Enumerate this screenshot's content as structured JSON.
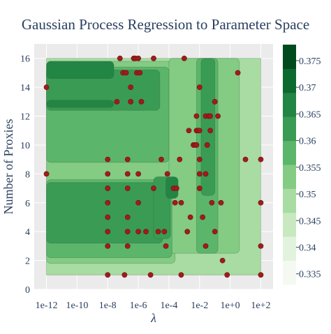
{
  "chart_data": {
    "type": "heatmap",
    "subtype": "contour",
    "title": "Gaussian Process Regression to Parameter Space",
    "xlabel": "λ",
    "ylabel": "Number of Proxies",
    "x_scale": "log",
    "x_ticks": [
      "1e-12",
      "1e-10",
      "1e-8",
      "1e-6",
      "1e-4",
      "1e-2",
      "1e+0",
      "1e+2"
    ],
    "x_tick_exponents": [
      -12,
      -10,
      -8,
      -6,
      -4,
      -2,
      0,
      2
    ],
    "y_ticks": [
      "0",
      "2",
      "4",
      "6",
      "8",
      "10",
      "12",
      "14",
      "16"
    ],
    "y_tick_values": [
      0,
      2,
      4,
      6,
      8,
      10,
      12,
      14,
      16
    ],
    "xlim_log10": [
      -12.8,
      2.8
    ],
    "ylim": [
      0,
      17
    ],
    "colorscale": "Greens",
    "colorbar": {
      "ticks": [
        "0.335",
        "0.34",
        "0.345",
        "0.35",
        "0.355",
        "0.36",
        "0.365",
        "0.37",
        "0.375"
      ],
      "tick_values": [
        0.335,
        0.34,
        0.345,
        0.35,
        0.355,
        0.36,
        0.365,
        0.37,
        0.375
      ],
      "range": [
        0.333,
        0.378
      ],
      "colors": [
        "#f4faf2",
        "#e1f3dc",
        "#c8e9c0",
        "#a8dca2",
        "#84cb84",
        "#5bb56a",
        "#3a9b54",
        "#238543",
        "#0c6a2f",
        "#014a1d"
      ]
    },
    "contour_bands": [
      {
        "level": 3,
        "x": [
          -12,
          2
        ],
        "y": [
          1,
          16
        ]
      },
      {
        "level": 4,
        "x": [
          -12,
          -3.6
        ],
        "y": [
          1.8,
          15.8
        ]
      },
      {
        "level": 4,
        "x": [
          -4,
          0.6
        ],
        "y": [
          2.5,
          16
        ]
      },
      {
        "level": 5,
        "x": [
          -12,
          -4
        ],
        "y": [
          8.8,
          15.4
        ]
      },
      {
        "level": 5,
        "x": [
          -12,
          -3.8
        ],
        "y": [
          2.2,
          7.6
        ]
      },
      {
        "level": 5,
        "x": [
          -2.2,
          -0.8
        ],
        "y": [
          2.5,
          16
        ]
      },
      {
        "level": 6,
        "x": [
          -12,
          -4.6
        ],
        "y": [
          12.4,
          15.2
        ]
      },
      {
        "level": 6,
        "x": [
          -12,
          -4.4
        ],
        "y": [
          3.2,
          7.4
        ]
      },
      {
        "level": 6,
        "x": [
          -5,
          -3.9
        ],
        "y": [
          3.5,
          7.8
        ]
      },
      {
        "level": 6,
        "x": [
          -1.9,
          -1.0
        ],
        "y": [
          6.5,
          16
        ]
      },
      {
        "level": 7,
        "x": [
          -12,
          -7.6
        ],
        "y": [
          12.6,
          13.1
        ]
      },
      {
        "level": 7,
        "x": [
          -12,
          -7.6
        ],
        "y": [
          14.6,
          15.8
        ]
      },
      {
        "level": 7,
        "x": [
          -4.2,
          -3.4
        ],
        "y": [
          6.3,
          7.8
        ]
      }
    ],
    "points": [
      {
        "x": -12,
        "y": 14
      },
      {
        "x": -12,
        "y": 8
      },
      {
        "x": -8,
        "y": 8
      },
      {
        "x": -8,
        "y": 9
      },
      {
        "x": -8,
        "y": 7
      },
      {
        "x": -8,
        "y": 6
      },
      {
        "x": -8,
        "y": 5
      },
      {
        "x": -8,
        "y": 4
      },
      {
        "x": -8,
        "y": 3
      },
      {
        "x": -8,
        "y": 1
      },
      {
        "x": -7.4,
        "y": 13
      },
      {
        "x": -7.2,
        "y": 16
      },
      {
        "x": -7,
        "y": 15
      },
      {
        "x": -6.9,
        "y": 1
      },
      {
        "x": -6.8,
        "y": 15
      },
      {
        "x": -6.7,
        "y": 9
      },
      {
        "x": -6.7,
        "y": 8
      },
      {
        "x": -6.7,
        "y": 7
      },
      {
        "x": -6.7,
        "y": 5
      },
      {
        "x": -6.7,
        "y": 4
      },
      {
        "x": -6.7,
        "y": 3
      },
      {
        "x": -6.5,
        "y": 14
      },
      {
        "x": -6.5,
        "y": 13
      },
      {
        "x": -6.3,
        "y": 16
      },
      {
        "x": -6.2,
        "y": 16
      },
      {
        "x": -6.1,
        "y": 15
      },
      {
        "x": -6.0,
        "y": 16
      },
      {
        "x": -6.0,
        "y": 8
      },
      {
        "x": -6.0,
        "y": 6
      },
      {
        "x": -6.0,
        "y": 4
      },
      {
        "x": -5.9,
        "y": 15
      },
      {
        "x": -5.8,
        "y": 13
      },
      {
        "x": -5.5,
        "y": 4
      },
      {
        "x": -5.2,
        "y": 1
      },
      {
        "x": -5.0,
        "y": 16
      },
      {
        "x": -5.0,
        "y": 7
      },
      {
        "x": -4.7,
        "y": 4
      },
      {
        "x": -4.5,
        "y": 9
      },
      {
        "x": -4.3,
        "y": 4
      },
      {
        "x": -4.2,
        "y": 3
      },
      {
        "x": -4.1,
        "y": 8
      },
      {
        "x": -3.7,
        "y": 7
      },
      {
        "x": -3.6,
        "y": 6
      },
      {
        "x": -3.5,
        "y": 7
      },
      {
        "x": -3.3,
        "y": 9
      },
      {
        "x": -3.2,
        "y": 1
      },
      {
        "x": -3.2,
        "y": 6
      },
      {
        "x": -3.0,
        "y": 16
      },
      {
        "x": -2.8,
        "y": 4
      },
      {
        "x": -2.7,
        "y": 11
      },
      {
        "x": -2.6,
        "y": 5
      },
      {
        "x": -2.4,
        "y": 10
      },
      {
        "x": -2.3,
        "y": 10
      },
      {
        "x": -2.2,
        "y": 12
      },
      {
        "x": -2.2,
        "y": 11
      },
      {
        "x": -2.2,
        "y": 10
      },
      {
        "x": -2.1,
        "y": 11
      },
      {
        "x": -2.0,
        "y": 14
      },
      {
        "x": -2.0,
        "y": 11
      },
      {
        "x": -2.0,
        "y": 9
      },
      {
        "x": -2.0,
        "y": 8
      },
      {
        "x": -2.0,
        "y": 7
      },
      {
        "x": -1.8,
        "y": 5
      },
      {
        "x": -1.6,
        "y": 12
      },
      {
        "x": -1.6,
        "y": 8
      },
      {
        "x": -1.6,
        "y": 3
      },
      {
        "x": -1.5,
        "y": 10
      },
      {
        "x": -1.4,
        "y": 12
      },
      {
        "x": -1.3,
        "y": 12
      },
      {
        "x": -1.3,
        "y": 11
      },
      {
        "x": -1.2,
        "y": 6
      },
      {
        "x": -1.0,
        "y": 13
      },
      {
        "x": -1.0,
        "y": 4
      },
      {
        "x": -0.8,
        "y": 12
      },
      {
        "x": -0.6,
        "y": 6
      },
      {
        "x": -0.5,
        "y": 2
      },
      {
        "x": -0.2,
        "y": 1
      },
      {
        "x": 0.5,
        "y": 15
      },
      {
        "x": 1,
        "y": 9
      },
      {
        "x": 2,
        "y": 9
      },
      {
        "x": 2,
        "y": 6
      },
      {
        "x": 2,
        "y": 3
      },
      {
        "x": 2,
        "y": 1
      }
    ],
    "point_color": "#a01c1c"
  }
}
